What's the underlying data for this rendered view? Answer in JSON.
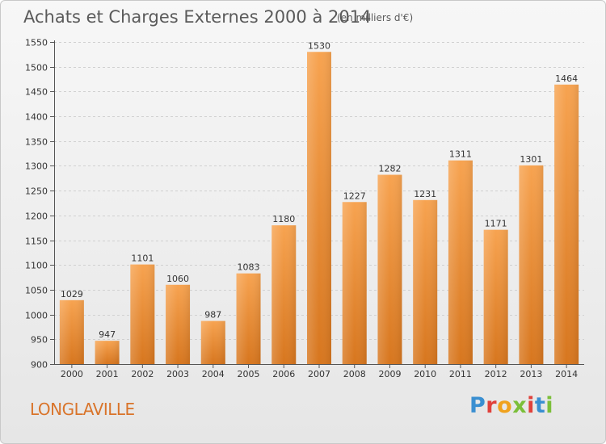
{
  "header": {
    "title": "Achats et Charges Externes 2000 à 2014",
    "subtitle": "(en milliers d'€)"
  },
  "footer": {
    "place": "LONGLAVILLE",
    "logo_text": "Proxiti"
  },
  "colors": {
    "bar_light": "#f7a350",
    "bar_dark": "#d7761e",
    "place_text": "#d9742a"
  },
  "chart_data": {
    "type": "bar",
    "title": "Achats et Charges Externes 2000 à 2014",
    "subtitle": "(en milliers d'€)",
    "categories": [
      "2000",
      "2001",
      "2002",
      "2003",
      "2004",
      "2005",
      "2006",
      "2007",
      "2008",
      "2009",
      "2010",
      "2011",
      "2012",
      "2013",
      "2014"
    ],
    "values": [
      1029,
      947,
      1101,
      1060,
      987,
      1083,
      1180,
      1530,
      1227,
      1282,
      1231,
      1311,
      1171,
      1301,
      1464
    ],
    "yticks": [
      900,
      950,
      1000,
      1050,
      1100,
      1150,
      1200,
      1250,
      1300,
      1350,
      1400,
      1450,
      1500,
      1550
    ],
    "ylim": [
      900,
      1550
    ],
    "grid": true,
    "xlabel": "",
    "ylabel": ""
  }
}
